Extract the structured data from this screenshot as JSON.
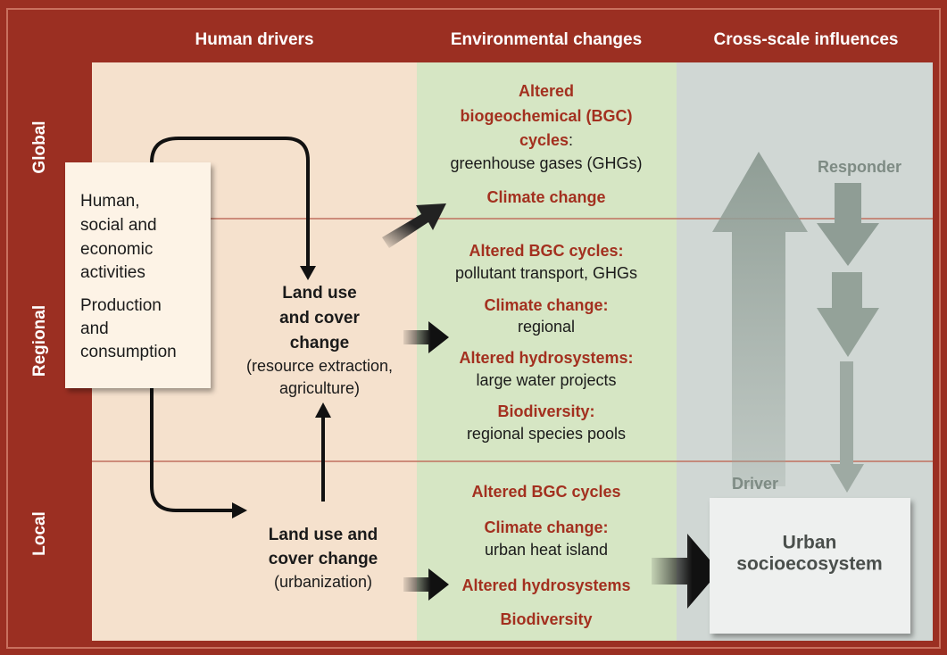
{
  "header": {
    "columns": [
      "Human drivers",
      "Environmental changes",
      "Cross-scale influences"
    ]
  },
  "rows": [
    "Global",
    "Regional",
    "Local"
  ],
  "drivers_box": {
    "activities": [
      "Human,",
      "social and",
      "economic",
      "activities"
    ],
    "production": [
      "Production",
      "and",
      "consumption"
    ]
  },
  "land_use_regional": {
    "title": [
      "Land use",
      "and cover",
      "change"
    ],
    "note": [
      "(resource extraction,",
      "agriculture)"
    ]
  },
  "land_use_local": {
    "title": [
      "Land use and",
      "cover change"
    ],
    "note": "(urbanization)"
  },
  "environmental": {
    "global": [
      "Altered",
      "biogeochemical (BGC)",
      "cycles",
      ":",
      "greenhouse gases (GHGs)",
      "Climate change"
    ],
    "regional": [
      "Altered BGC cycles:",
      "pollutant transport, GHGs",
      "Climate change:",
      "regional",
      "Altered hydrosystems:",
      "large water projects",
      "Biodiversity:",
      "regional species pools"
    ],
    "local": [
      "Altered BGC cycles",
      "Climate change:",
      "urban heat island",
      "Altered hydrosystems",
      "Biodiversity"
    ]
  },
  "cross_scale": {
    "responder": "Responder",
    "driver": "Driver",
    "urban": [
      "Urban",
      "socioecosystem"
    ]
  }
}
